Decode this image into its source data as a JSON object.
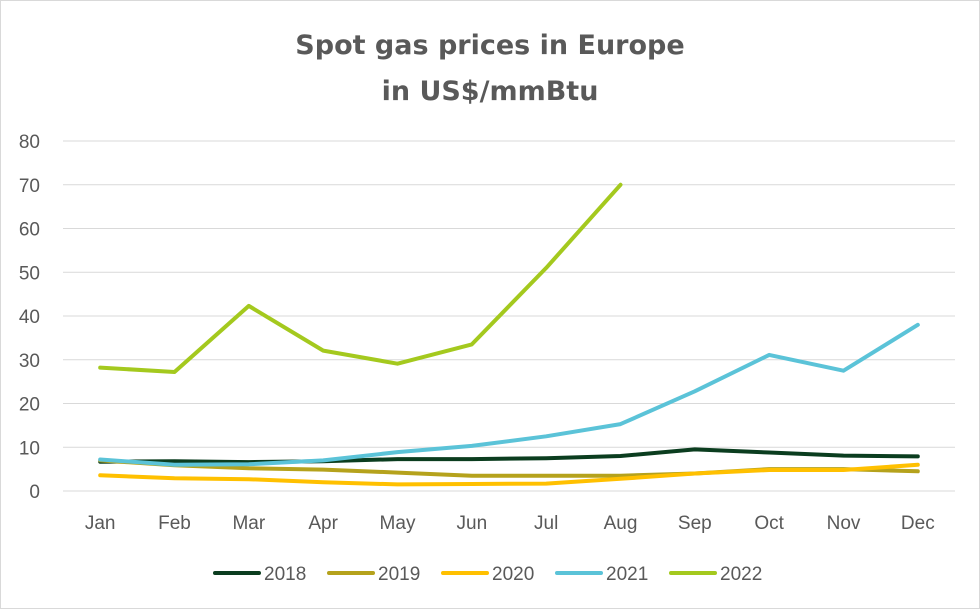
{
  "chart_data": {
    "type": "line",
    "title": [
      "Spot gas prices in Europe",
      "in US$/mmBtu"
    ],
    "xlabel": "",
    "ylabel": "",
    "ylim": [
      0,
      80
    ],
    "yticks": [
      "0",
      "10",
      "20",
      "30",
      "40",
      "50",
      "60",
      "70",
      "80"
    ],
    "grid": true,
    "legend_position": "bottom",
    "categories": [
      "Jan",
      "Feb",
      "Mar",
      "Apr",
      "May",
      "Jun",
      "Jul",
      "Aug",
      "Sep",
      "Oct",
      "Nov",
      "Dec"
    ],
    "series": [
      {
        "name": "2018",
        "color": "#0b3d1f",
        "values": [
          6.7,
          6.8,
          6.6,
          6.8,
          7.3,
          7.3,
          7.5,
          8.0,
          9.5,
          8.8,
          8.1,
          7.9
        ]
      },
      {
        "name": "2019",
        "color": "#b5a21c",
        "values": [
          7.0,
          5.9,
          5.2,
          4.9,
          4.2,
          3.5,
          3.5,
          3.5,
          4.0,
          5.0,
          5.0,
          4.5
        ]
      },
      {
        "name": "2020",
        "color": "#ffc000",
        "values": [
          3.6,
          2.9,
          2.7,
          2.0,
          1.5,
          1.6,
          1.7,
          2.8,
          4.0,
          4.8,
          4.8,
          6.0
        ]
      },
      {
        "name": "2021",
        "color": "#5bc3d8",
        "values": [
          7.2,
          6.0,
          6.1,
          7.0,
          8.9,
          10.3,
          12.5,
          15.3,
          22.8,
          31.1,
          27.5,
          38.0
        ]
      },
      {
        "name": "2022",
        "color": "#a4c91e",
        "values": [
          28.2,
          27.2,
          42.3,
          32.1,
          29.1,
          33.5,
          51.0,
          70.0,
          null,
          null,
          null,
          null
        ]
      }
    ]
  }
}
